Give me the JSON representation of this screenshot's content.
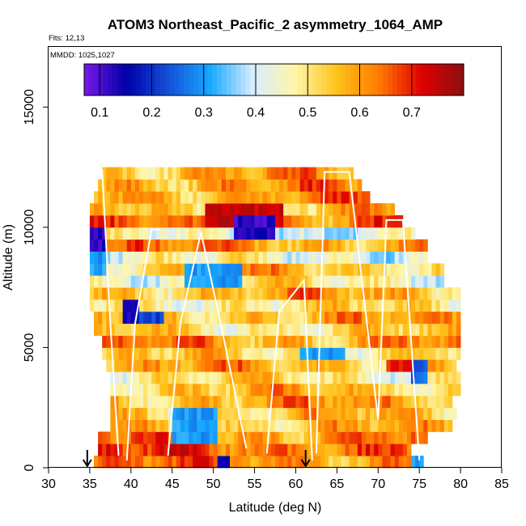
{
  "chart_data": {
    "type": "heatmap",
    "title": "ATOM3 Northeast_Pacific_2 asymmetry_1064_AMP",
    "flights_label": "Flts: 12,13",
    "dates_label": "MMDD: 1025,1027",
    "xlabel": "Latitude (deg N)",
    "ylabel": "Altitude (m)",
    "xlim": [
      30,
      85
    ],
    "ylim": [
      0,
      17500
    ],
    "xticks": [
      "30",
      "35",
      "40",
      "45",
      "50",
      "55",
      "60",
      "65",
      "70",
      "75",
      "80",
      "85"
    ],
    "yticks": [
      "0",
      "5000",
      "10000",
      "15000"
    ],
    "colorbar": {
      "range": [
        0.07,
        0.8
      ],
      "ticks": [
        "0.1",
        "0.2",
        "0.3",
        "0.4",
        "0.5",
        "0.6",
        "0.7"
      ],
      "colors": [
        "#7a18e8",
        "#0000a8",
        "#1450d8",
        "#18aaff",
        "#d8ecff",
        "#fff6a8",
        "#ffc21a",
        "#ff7a00",
        "#e00000",
        "#8a1010"
      ]
    },
    "bin_height_m": 500,
    "lat_step_deg": 0.5,
    "rows": [
      {
        "alt": 250,
        "lat_min": 35.5,
        "lat_max": 75.5,
        "base": 0.62
      },
      {
        "alt": 750,
        "lat_min": 36,
        "lat_max": 74,
        "base": 0.66
      },
      {
        "alt": 1250,
        "lat_min": 36,
        "lat_max": 76,
        "base": 0.62
      },
      {
        "alt": 1750,
        "lat_min": 37.5,
        "lat_max": 79,
        "base": 0.55
      },
      {
        "alt": 2250,
        "lat_min": 37.5,
        "lat_max": 79.5,
        "base": 0.55
      },
      {
        "alt": 2750,
        "lat_min": 37.5,
        "lat_max": 79,
        "base": 0.58
      },
      {
        "alt": 3250,
        "lat_min": 37.5,
        "lat_max": 80,
        "base": 0.55
      },
      {
        "alt": 3750,
        "lat_min": 37.5,
        "lat_max": 80,
        "base": 0.5
      },
      {
        "alt": 4250,
        "lat_min": 37,
        "lat_max": 79.5,
        "base": 0.57
      },
      {
        "alt": 4750,
        "lat_min": 36.5,
        "lat_max": 80,
        "base": 0.52
      },
      {
        "alt": 5250,
        "lat_min": 36.5,
        "lat_max": 80,
        "base": 0.6
      },
      {
        "alt": 5750,
        "lat_min": 35.5,
        "lat_max": 80,
        "base": 0.52
      },
      {
        "alt": 6250,
        "lat_min": 35.5,
        "lat_max": 80,
        "base": 0.57
      },
      {
        "alt": 6750,
        "lat_min": 35,
        "lat_max": 80,
        "base": 0.5
      },
      {
        "alt": 7250,
        "lat_min": 35,
        "lat_max": 80,
        "base": 0.57
      },
      {
        "alt": 7750,
        "lat_min": 35,
        "lat_max": 78,
        "base": 0.48
      },
      {
        "alt": 8250,
        "lat_min": 35,
        "lat_max": 78,
        "base": 0.55
      },
      {
        "alt": 8750,
        "lat_min": 35,
        "lat_max": 76,
        "base": 0.45
      },
      {
        "alt": 9250,
        "lat_min": 35,
        "lat_max": 76,
        "base": 0.6
      },
      {
        "alt": 9750,
        "lat_min": 35,
        "lat_max": 74.5,
        "base": 0.42
      },
      {
        "alt": 10250,
        "lat_min": 35,
        "lat_max": 73,
        "base": 0.62
      },
      {
        "alt": 10750,
        "lat_min": 35,
        "lat_max": 72,
        "base": 0.55
      },
      {
        "alt": 11250,
        "lat_min": 35.5,
        "lat_max": 69,
        "base": 0.6
      },
      {
        "alt": 11750,
        "lat_min": 36,
        "lat_max": 68,
        "base": 0.6
      },
      {
        "alt": 12250,
        "lat_min": 36.5,
        "lat_max": 67,
        "base": 0.58
      }
    ],
    "patches": [
      {
        "lat": [
          49,
          58.5
        ],
        "alt": [
          10000,
          11000
        ],
        "value": 0.74
      },
      {
        "lat": [
          52.5,
          57.5
        ],
        "alt": [
          9500,
          10500
        ],
        "value": 0.12
      },
      {
        "lat": [
          35,
          37
        ],
        "alt": [
          9000,
          10000
        ],
        "value": 0.12
      },
      {
        "lat": [
          35,
          36
        ],
        "alt": [
          8000,
          8500
        ],
        "value": 0.15
      },
      {
        "lat": [
          46.5,
          53.5
        ],
        "alt": [
          7500,
          8500
        ],
        "value": 0.3
      },
      {
        "lat": [
          39,
          41
        ],
        "alt": [
          6000,
          7000
        ],
        "value": 0.15
      },
      {
        "lat": [
          41,
          44
        ],
        "alt": [
          6000,
          6500
        ],
        "value": 0.22
      },
      {
        "lat": [
          60.5,
          66
        ],
        "alt": [
          4500,
          5000
        ],
        "value": 0.3
      },
      {
        "lat": [
          71,
          75
        ],
        "alt": [
          4000,
          4500
        ],
        "value": 0.7
      },
      {
        "lat": [
          74,
          76
        ],
        "alt": [
          3500,
          4500
        ],
        "value": 0.25
      },
      {
        "lat": [
          45,
          50.5
        ],
        "alt": [
          1000,
          2500
        ],
        "value": 0.3
      },
      {
        "lat": [
          50.5,
          52
        ],
        "alt": [
          0,
          500
        ],
        "value": 0.15
      },
      {
        "lat": [
          74,
          75.5
        ],
        "alt": [
          0,
          500
        ],
        "value": 0.3
      },
      {
        "lat": [
          35,
          37
        ],
        "alt": [
          8000,
          9000
        ],
        "value": 0.3
      }
    ],
    "profiles": [
      {
        "lat": [
          36.5,
          37.5,
          38.5
        ],
        "alt": [
          12400,
          6000,
          500
        ]
      },
      {
        "lat": [
          39.5,
          40.5,
          42.5,
          43.5
        ],
        "alt": [
          300,
          6000,
          9900,
          9900
        ]
      },
      {
        "lat": [
          44.5,
          46,
          48.5
        ],
        "alt": [
          500,
          6000,
          9800
        ]
      },
      {
        "lat": [
          48.5,
          51.5,
          54
        ],
        "alt": [
          9800,
          5000,
          800
        ]
      },
      {
        "lat": [
          56.5,
          58,
          61,
          62
        ],
        "alt": [
          600,
          6500,
          7800,
          300
        ]
      },
      {
        "lat": [
          62.5,
          63.5,
          66.5,
          70
        ],
        "alt": [
          600,
          12300,
          12300,
          2000
        ]
      },
      {
        "lat": [
          70,
          71,
          73,
          75
        ],
        "alt": [
          2000,
          10300,
          10300,
          300
        ]
      }
    ],
    "markers": [
      {
        "lat": 34.7,
        "label": "arrow"
      },
      {
        "lat": 61.2,
        "label": "arrow"
      }
    ]
  }
}
